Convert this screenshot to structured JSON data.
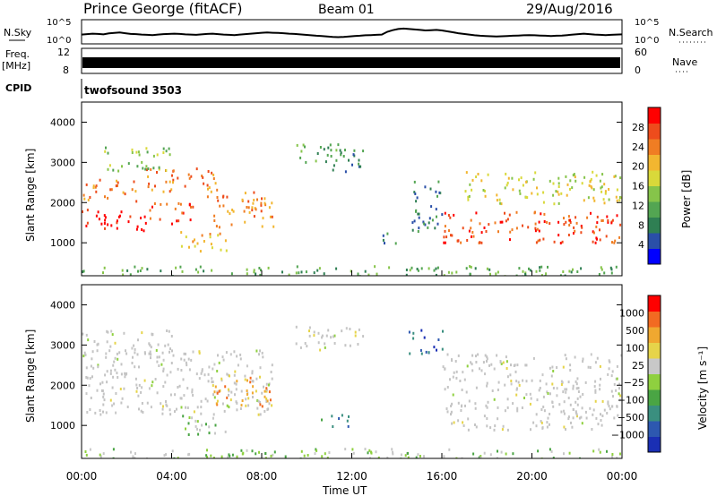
{
  "header": {
    "station": "Prince George (fitACF)",
    "beam": "Beam 01",
    "date": "29/Aug/2016"
  },
  "colors": {
    "power_scale": [
      "#0000ff",
      "#2a4fa8",
      "#2f7f53",
      "#53a552",
      "#86c44a",
      "#d9d93a",
      "#f2b630",
      "#f07d23",
      "#ee4c1c",
      "#ff0000"
    ],
    "velocity_scale": [
      "#1a2fb4",
      "#2d58b0",
      "#3a8f7f",
      "#4aa544",
      "#8fd03f",
      "#c8c8c8",
      "#e6d44a",
      "#f0a830",
      "#f26a22",
      "#ff0000"
    ],
    "grey_scatter": "#c4c4c4"
  },
  "chart_data": [
    {
      "type": "line",
      "panel": "N.Sky / N.Search",
      "left_label": "N.Sky",
      "right_label": "N.Search",
      "left_ticks": [
        "10^5",
        "10^0"
      ],
      "right_ticks": [
        "10^5",
        "10^0"
      ],
      "series": [
        {
          "values": [
            3.6,
            3.8,
            4.0,
            3.9,
            3.7,
            4.1,
            4.3,
            4.5,
            4.2,
            3.9,
            3.8,
            3.6,
            3.5,
            3.4,
            3.6,
            3.8,
            3.9,
            4.0,
            3.9,
            3.7,
            3.6,
            3.5,
            3.7,
            3.9,
            4.0,
            3.8,
            3.6,
            3.5,
            3.4,
            3.6,
            3.8,
            4.0,
            4.2,
            4.4,
            4.5,
            4.4,
            4.3,
            4.2,
            4.0,
            3.9,
            3.7,
            3.5,
            3.3,
            3.1,
            3.0,
            2.8,
            2.6,
            2.5,
            2.6,
            2.8,
            3.0,
            3.1,
            3.3,
            3.4,
            3.5,
            3.6,
            4.8,
            5.5,
            6.0,
            6.2,
            6.0,
            5.8,
            5.6,
            5.4,
            5.5,
            5.6,
            5.4,
            5.0,
            4.6,
            4.2,
            3.9,
            3.6,
            3.3,
            3.1,
            3.0,
            2.9,
            2.8,
            2.9,
            3.0,
            3.1,
            3.2,
            3.3,
            3.4,
            3.3,
            3.2,
            3.1,
            3.0,
            3.1,
            3.2,
            3.4,
            3.6,
            3.8,
            4.0,
            3.8,
            3.6,
            3.5,
            3.4,
            3.5,
            3.6,
            3.7
          ]
        }
      ],
      "x_range": [
        0,
        24
      ]
    },
    {
      "type": "line",
      "panel": "Freq. / Nave",
      "left_label": "Freq.",
      "left_unit": "[MHz]",
      "right_label": "Nave",
      "left_ticks": [
        "12",
        "8"
      ],
      "right_ticks": [
        "60",
        "0"
      ],
      "series": [
        {
          "values": [
            10.5,
            10.5,
            10.5,
            10.5,
            10.5,
            10.5,
            10.5,
            10.5,
            10.5,
            10.5,
            10.5,
            10.5,
            10.5,
            10.5,
            10.5,
            10.5,
            10.5,
            10.5,
            10.5,
            10.5
          ]
        }
      ],
      "x_range": [
        0,
        24
      ]
    },
    {
      "type": "heatmap",
      "panel": "CPID",
      "label": "CPID",
      "annotation": "twofsound 3503"
    },
    {
      "type": "heatmap",
      "panel": "Power",
      "ylabel": "Slant Range [km]",
      "colorbar_label": "Power [dB]",
      "colorbar_ticks": [
        "28",
        "24",
        "20",
        "16",
        "12",
        "8",
        "4"
      ],
      "y_ticks": [
        "4000",
        "3000",
        "2000",
        "1000"
      ],
      "ylim": [
        180,
        4500
      ],
      "x_range": [
        0,
        24
      ],
      "regions": [
        {
          "t0": 0.0,
          "t1": 3.0,
          "r0": 1300,
          "r1": 1850,
          "level": 9
        },
        {
          "t0": 3.0,
          "t1": 5.0,
          "r0": 1500,
          "r1": 2050,
          "level": 8
        },
        {
          "t0": 0.0,
          "t1": 2.5,
          "r0": 2050,
          "r1": 2600,
          "level": 7
        },
        {
          "t0": 2.5,
          "t1": 6.0,
          "r0": 2300,
          "r1": 2900,
          "level": 7
        },
        {
          "t0": 1.0,
          "t1": 4.0,
          "r0": 2800,
          "r1": 3400,
          "level": 4
        },
        {
          "t0": 5.5,
          "t1": 8.5,
          "r0": 1400,
          "r1": 2300,
          "level": 7
        },
        {
          "t0": 4.3,
          "t1": 6.5,
          "r0": 800,
          "r1": 1300,
          "level": 6
        },
        {
          "t0": 9.5,
          "t1": 11.5,
          "r0": 3000,
          "r1": 3500,
          "level": 3
        },
        {
          "t0": 11.0,
          "t1": 12.5,
          "r0": 2800,
          "r1": 3500,
          "level": 2
        },
        {
          "t0": 13.0,
          "t1": 14.0,
          "r0": 1000,
          "r1": 1300,
          "level": 2
        },
        {
          "t0": 16.0,
          "t1": 24.0,
          "r0": 1000,
          "r1": 1800,
          "level": 8
        },
        {
          "t0": 17.0,
          "t1": 24.0,
          "r0": 2000,
          "r1": 2800,
          "level": 5
        },
        {
          "t0": 14.5,
          "t1": 16.0,
          "r0": 1300,
          "r1": 2600,
          "level": 2
        },
        {
          "t0": 0.0,
          "t1": 24.0,
          "r0": 180,
          "r1": 450,
          "level": 3
        }
      ]
    },
    {
      "type": "heatmap",
      "panel": "Velocity",
      "ylabel": "Slant Range [km]",
      "colorbar_label": "Velocity [m s⁻¹]",
      "colorbar_ticks": [
        "1000",
        "500",
        "100",
        "25",
        "−25",
        "−100",
        "−500",
        "−1000"
      ],
      "y_ticks": [
        "4000",
        "3000",
        "2000",
        "1000"
      ],
      "ylim": [
        180,
        4500
      ],
      "x_range": [
        0,
        24
      ],
      "regions": [
        {
          "t0": 0.0,
          "t1": 8.5,
          "r0": 1300,
          "r1": 2900,
          "level": 5
        },
        {
          "t0": 0.0,
          "t1": 4.0,
          "r0": 2800,
          "r1": 3400,
          "level": 5
        },
        {
          "t0": 5.8,
          "t1": 8.5,
          "r0": 1500,
          "r1": 2300,
          "level": 7
        },
        {
          "t0": 4.3,
          "t1": 6.5,
          "r0": 800,
          "r1": 1300,
          "level": 4
        },
        {
          "t0": 9.5,
          "t1": 12.5,
          "r0": 2900,
          "r1": 3500,
          "level": 5
        },
        {
          "t0": 10.5,
          "t1": 12.0,
          "r0": 1000,
          "r1": 1300,
          "level": 2
        },
        {
          "t0": 16.0,
          "t1": 24.0,
          "r0": 900,
          "r1": 2800,
          "level": 5
        },
        {
          "t0": 14.5,
          "t1": 16.0,
          "r0": 2800,
          "r1": 3400,
          "level": 1
        },
        {
          "t0": 0.0,
          "t1": 24.0,
          "r0": 180,
          "r1": 450,
          "level": 4
        }
      ]
    }
  ],
  "x_ticks": [
    "00:00",
    "04:00",
    "08:00",
    "12:00",
    "16:00",
    "20:00",
    "00:00"
  ],
  "xlabel": "Time UT"
}
